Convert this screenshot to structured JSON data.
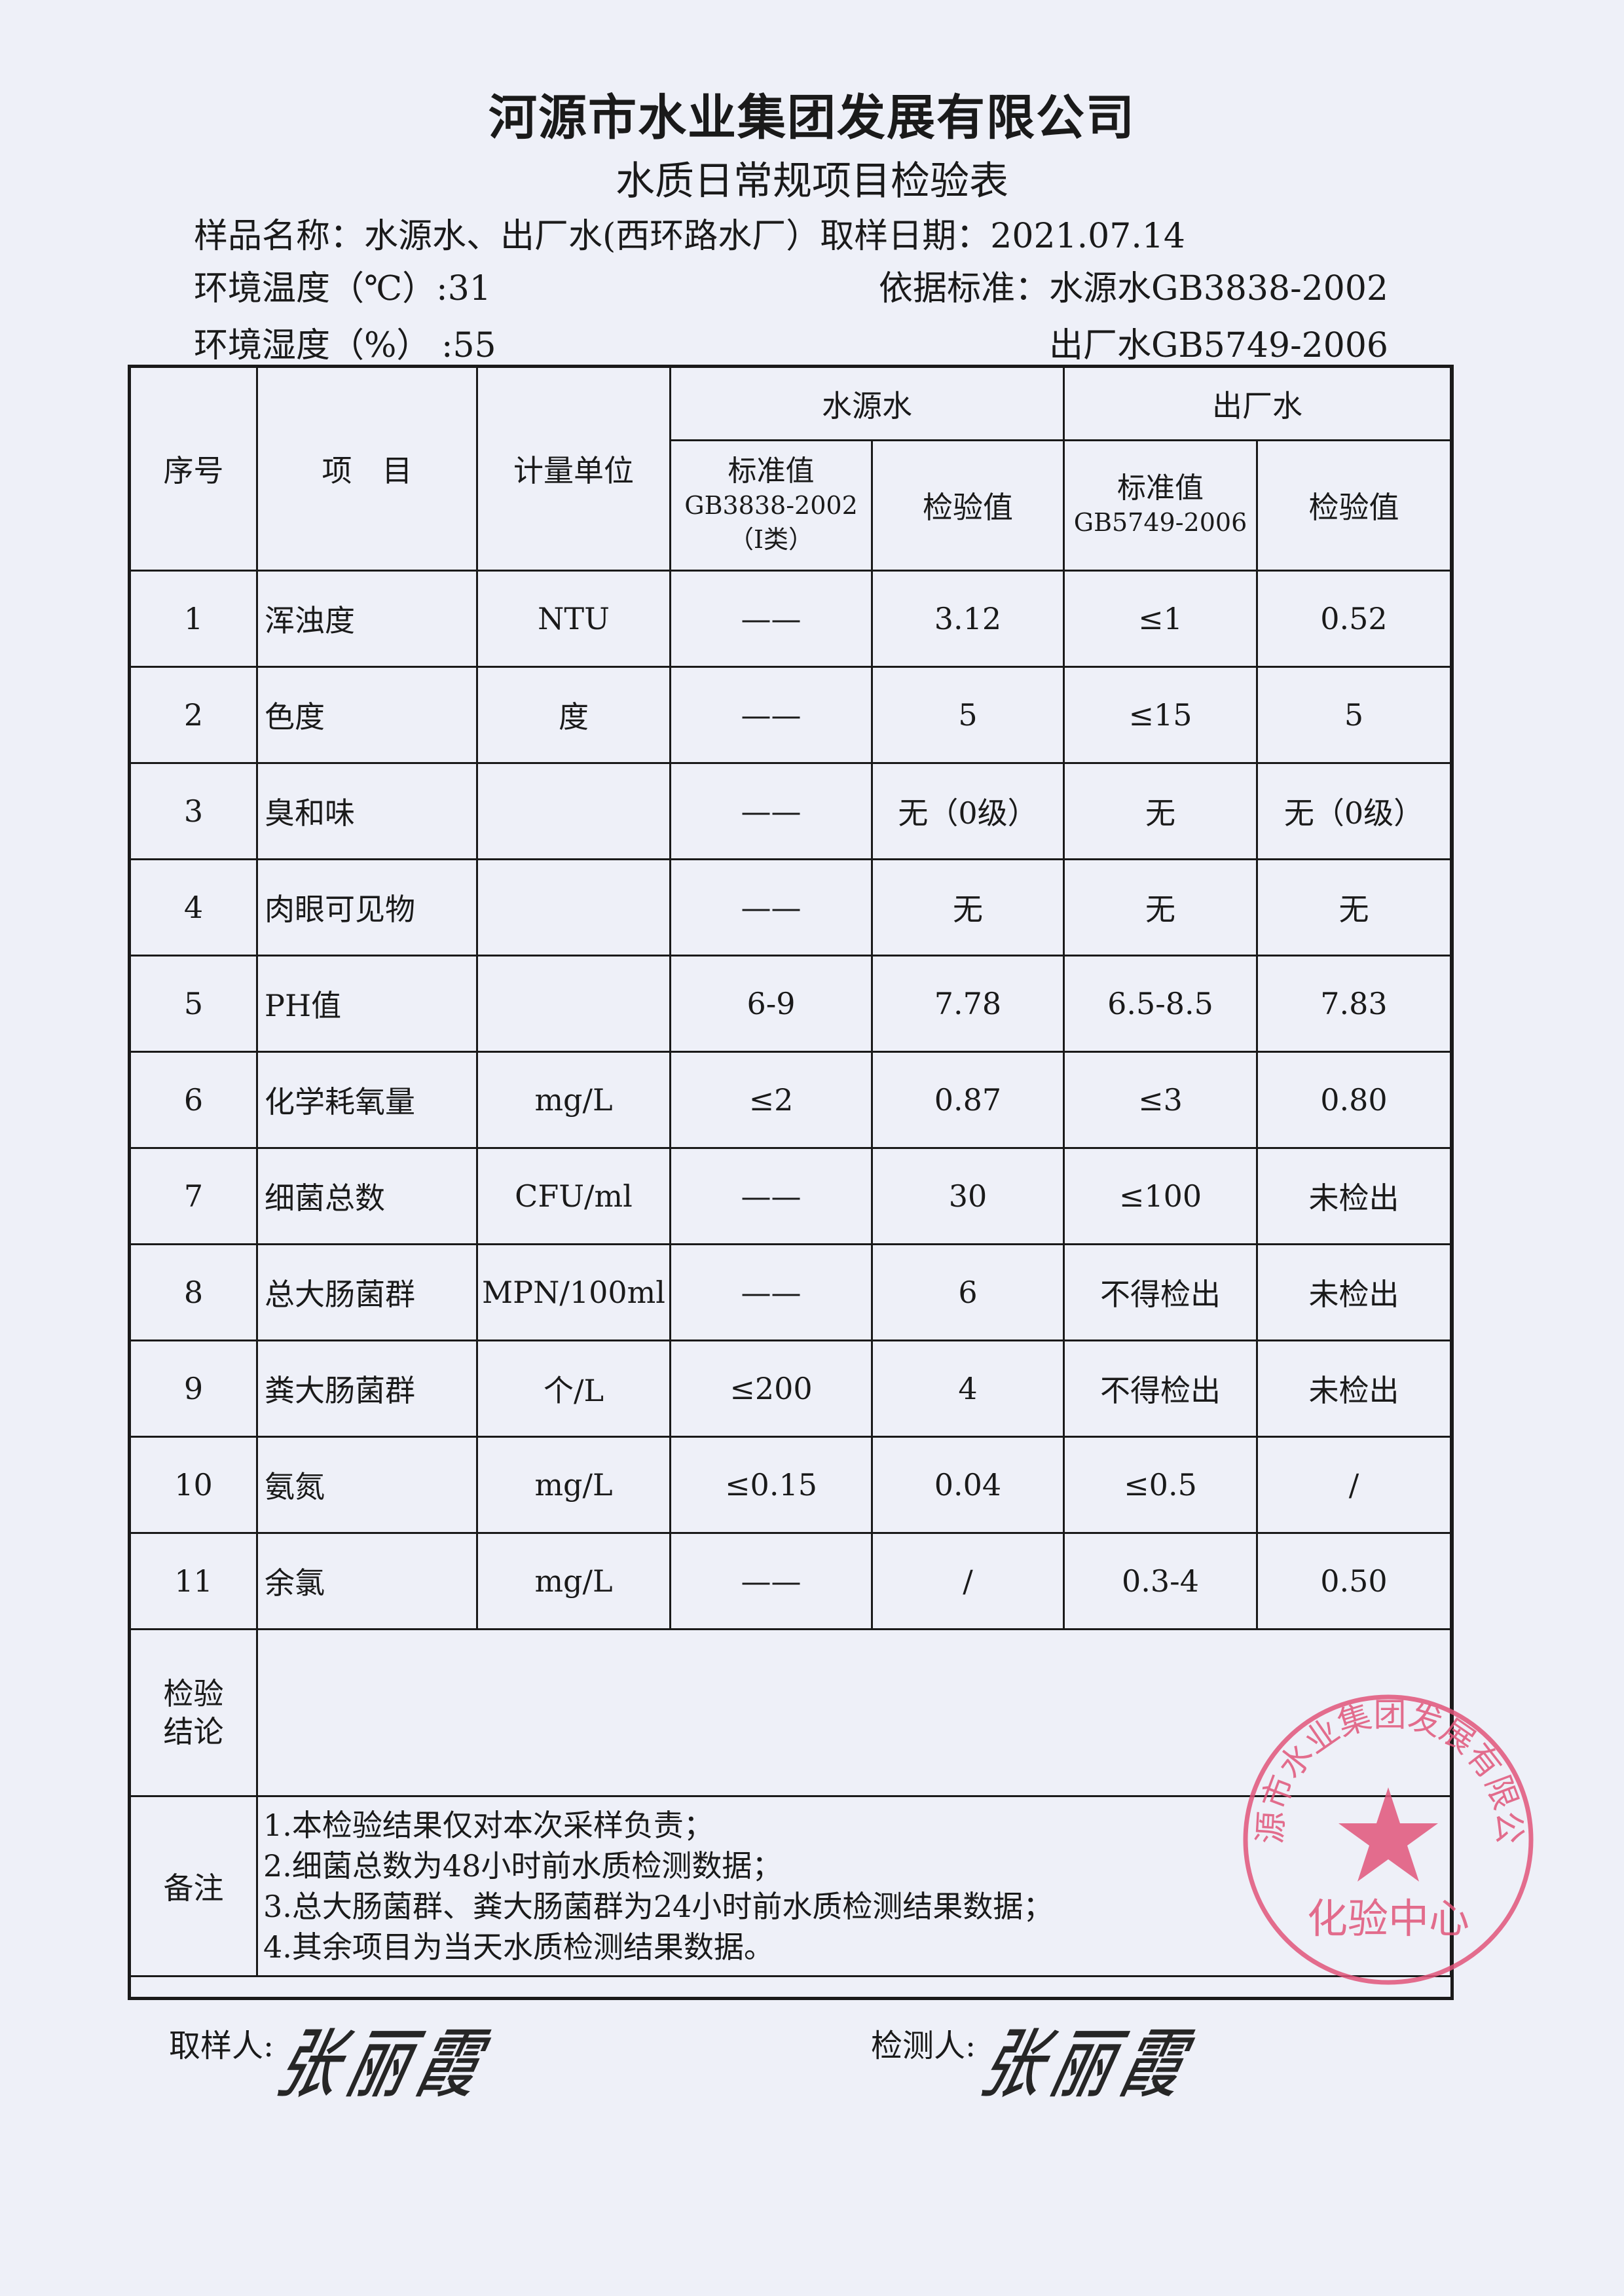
{
  "header": {
    "company": "河源市水业集团发展有限公司",
    "form_title": "水质日常规项目检验表",
    "sample_name": "样品名称：水源水、出厂水(西环路水厂）取样日期：2021.07.14",
    "temperature": "环境温度（℃）:31",
    "humidity": "环境湿度（%） :55",
    "standard_line1": "依据标准：水源水GB3838-2002",
    "standard_line2": "出厂水GB5749-2006"
  },
  "table": {
    "headers": {
      "no": "序号",
      "item": "项　目",
      "unit": "计量单位",
      "source_water": "水源水",
      "finished_water": "出厂水",
      "source_std_1": "标准值",
      "source_std_2": "GB3838-2002",
      "source_std_3": "（Ⅰ类）",
      "source_val": "检验值",
      "finished_std_1": "标准值",
      "finished_std_2": "GB5749-2006",
      "finished_val": "检验值"
    },
    "rows": [
      {
        "no": "1",
        "item": "浑浊度",
        "unit": "NTU",
        "src_std": "——",
        "src_val": "3.12",
        "fin_std": "≤1",
        "fin_val": "0.52"
      },
      {
        "no": "2",
        "item": "色度",
        "unit": "度",
        "src_std": "——",
        "src_val": "5",
        "fin_std": "≤15",
        "fin_val": "5"
      },
      {
        "no": "3",
        "item": "臭和味",
        "unit": "",
        "src_std": "——",
        "src_val": "无（0级）",
        "fin_std": "无",
        "fin_val": "无（0级）"
      },
      {
        "no": "4",
        "item": "肉眼可见物",
        "unit": "",
        "src_std": "——",
        "src_val": "无",
        "fin_std": "无",
        "fin_val": "无"
      },
      {
        "no": "5",
        "item": "PH值",
        "unit": "",
        "src_std": "6-9",
        "src_val": "7.78",
        "fin_std": "6.5-8.5",
        "fin_val": "7.83"
      },
      {
        "no": "6",
        "item": "化学耗氧量",
        "unit": "mg/L",
        "src_std": "≤2",
        "src_val": "0.87",
        "fin_std": "≤3",
        "fin_val": "0.80"
      },
      {
        "no": "7",
        "item": "细菌总数",
        "unit": "CFU/ml",
        "src_std": "——",
        "src_val": "30",
        "fin_std": "≤100",
        "fin_val": "未检出"
      },
      {
        "no": "8",
        "item": "总大肠菌群",
        "unit": "MPN/100ml",
        "src_std": "——",
        "src_val": "6",
        "fin_std": "不得检出",
        "fin_val": "未检出"
      },
      {
        "no": "9",
        "item": "粪大肠菌群",
        "unit": "个/L",
        "src_std": "≤200",
        "src_val": "4",
        "fin_std": "不得检出",
        "fin_val": "未检出"
      },
      {
        "no": "10",
        "item": "氨氮",
        "unit": "mg/L",
        "src_std": "≤0.15",
        "src_val": "0.04",
        "fin_std": "≤0.5",
        "fin_val": "/"
      },
      {
        "no": "11",
        "item": "余氯",
        "unit": "mg/L",
        "src_std": "——",
        "src_val": "/",
        "fin_std": "0.3-4",
        "fin_val": "0.50"
      }
    ],
    "conclusion_label_1": "检验",
    "conclusion_label_2": "结论",
    "conclusion": "",
    "remarks_label": "备注",
    "remarks": [
      "1.本检验结果仅对本次采样负责；",
      "2.细菌总数为48小时前水质检测数据；",
      "3.总大肠菌群、粪大肠菌群为24小时前水质检测结果数据；",
      "4.其余项目为当天水质检测结果数据。"
    ]
  },
  "footer": {
    "sampler_label": "取样人:",
    "tester_label": "检测人:",
    "sampler_signature": "张丽霞",
    "tester_signature": "张丽霞"
  },
  "stamp": {
    "ring_text": "河源市水业集团发展有限公司",
    "center_text": "化验中心",
    "color": "#e0557a"
  }
}
